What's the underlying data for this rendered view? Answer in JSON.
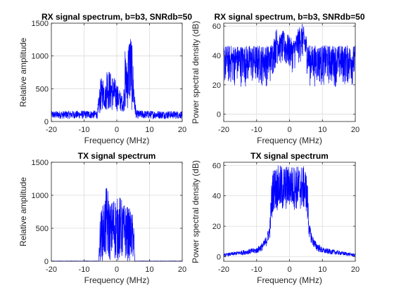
{
  "chart_data": [
    {
      "type": "line",
      "title": "RX signal spectrum, b=b3, SNRdb=50",
      "xlabel": "Frequency (MHz)",
      "ylabel": "Relative amplitude",
      "xlim": [
        -20,
        20
      ],
      "ylim": [
        0,
        1500
      ],
      "xticks": [
        -20,
        -10,
        0,
        10,
        20
      ],
      "yticks": [
        0,
        500,
        1000,
        1500
      ],
      "grid": true,
      "color": "#0000ff",
      "envelope": {
        "x": [
          -20,
          -6,
          -5.5,
          -5,
          -4,
          -3.5,
          -3,
          -2,
          -1,
          0,
          1,
          2,
          2.5,
          3,
          3.5,
          4,
          4.5,
          5,
          5.5,
          6,
          20
        ],
        "y_low": [
          40,
          40,
          80,
          120,
          200,
          150,
          180,
          150,
          150,
          150,
          150,
          150,
          150,
          150,
          180,
          200,
          150,
          120,
          80,
          40,
          40
        ],
        "y_high": [
          160,
          170,
          400,
          650,
          700,
          520,
          880,
          760,
          700,
          600,
          480,
          350,
          1100,
          950,
          1250,
          1420,
          1300,
          900,
          400,
          170,
          160
        ]
      }
    },
    {
      "type": "line",
      "title": "RX signal spectrum, b=b3, SNRdb=50",
      "xlabel": "Frequency (MHz)",
      "ylabel": "Power spectral density (dB)",
      "xlim": [
        -20,
        20
      ],
      "ylim": [
        -5,
        62
      ],
      "xticks": [
        -20,
        -10,
        0,
        10,
        20
      ],
      "yticks": [
        0,
        20,
        40,
        60
      ],
      "grid": true,
      "color": "#0000ff",
      "envelope": {
        "x": [
          -20,
          -6,
          -5,
          -4,
          -3,
          -2,
          -1,
          0,
          1,
          2,
          3,
          4,
          5,
          6,
          20
        ],
        "y_low": [
          18,
          18,
          25,
          32,
          33,
          30,
          28,
          28,
          28,
          30,
          33,
          34,
          30,
          18,
          18
        ],
        "y_high": [
          47,
          47,
          50,
          59,
          54,
          57,
          55,
          54,
          50,
          55,
          60,
          62,
          55,
          47,
          47
        ]
      }
    },
    {
      "type": "line",
      "title": "TX signal spectrum",
      "xlabel": "Frequency (MHz)",
      "ylabel": "Relative amplitude",
      "xlim": [
        -20,
        20
      ],
      "ylim": [
        0,
        1500
      ],
      "xticks": [
        -20,
        -10,
        0,
        10,
        20
      ],
      "yticks": [
        0,
        500,
        1000,
        1500
      ],
      "grid": true,
      "color": "#0000ff",
      "envelope": {
        "x": [
          -20,
          -5.5,
          -5.3,
          -5,
          -4,
          -3,
          -2,
          -1,
          0,
          1,
          2,
          3,
          4,
          5,
          5.3,
          5.5,
          20
        ],
        "y_low": [
          0,
          0,
          0,
          0,
          0,
          0,
          0,
          0,
          0,
          0,
          0,
          0,
          0,
          0,
          0,
          0,
          0
        ],
        "y_high": [
          5,
          5,
          500,
          750,
          900,
          1200,
          850,
          1000,
          950,
          1000,
          880,
          850,
          800,
          700,
          500,
          5,
          5
        ]
      }
    },
    {
      "type": "line",
      "title": "TX signal spectrum",
      "xlabel": "Frequency (MHz)",
      "ylabel": "Power spectral density (dB)",
      "xlim": [
        -20,
        20
      ],
      "ylim": [
        -3,
        62
      ],
      "xticks": [
        -20,
        -10,
        0,
        10,
        20
      ],
      "yticks": [
        0,
        20,
        40,
        60
      ],
      "grid": true,
      "color": "#0000ff",
      "envelope": {
        "x": [
          -20,
          -15,
          -10,
          -8,
          -7,
          -6,
          -5.5,
          -5,
          -4,
          -2,
          0,
          2,
          4,
          5,
          5.5,
          6,
          7,
          8,
          10,
          15,
          20
        ],
        "y_low": [
          0,
          1,
          2,
          4,
          7,
          12,
          20,
          30,
          30,
          28,
          32,
          30,
          30,
          30,
          20,
          12,
          7,
          4,
          2,
          1,
          0
        ],
        "y_high": [
          2,
          4,
          6,
          10,
          14,
          22,
          48,
          58,
          60,
          60,
          60,
          60,
          60,
          58,
          48,
          22,
          14,
          10,
          6,
          4,
          2
        ]
      }
    }
  ]
}
